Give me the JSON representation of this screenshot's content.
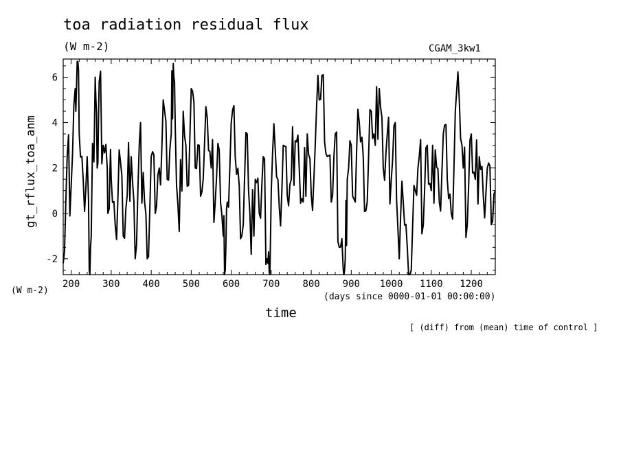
{
  "chart_data": {
    "type": "line",
    "title": "toa radiation residual flux",
    "units": "(W m-2)",
    "run_label": "CGAM_3kw1",
    "ylabel": "gt_rflux_toa_anm",
    "y_units": "(W m-2)",
    "xlabel": "time",
    "x_units": "(days since 0000-01-01 00:00:00)",
    "note": "[ (diff) from (mean) time of control ]",
    "xlim": [
      180,
      1260
    ],
    "ylim": [
      -2.7,
      6.8
    ],
    "x_ticks": [
      200,
      300,
      400,
      500,
      600,
      700,
      800,
      900,
      1000,
      1100,
      1200
    ],
    "y_ticks": [
      -2,
      0,
      2,
      4,
      6
    ],
    "x_tick_labels": [
      "200",
      "300",
      "400",
      "500",
      "600",
      "700",
      "800",
      "900",
      "1000",
      "1100",
      "1200"
    ],
    "y_tick_labels": [
      "-2",
      "0",
      "2",
      "4",
      "6"
    ],
    "series": [
      {
        "name": "gt_rflux_toa_anm",
        "x": [
          180,
          190,
          200,
          210,
          215,
          220,
          230,
          240,
          245,
          250,
          260,
          265,
          270,
          280,
          290,
          295,
          300,
          310,
          320,
          330,
          340,
          350,
          360,
          370,
          380,
          390,
          400,
          410,
          420,
          430,
          440,
          450,
          455,
          460,
          470,
          480,
          490,
          500,
          510,
          520,
          530,
          540,
          550,
          560,
          570,
          580,
          585,
          590,
          600,
          610,
          620,
          630,
          640,
          650,
          660,
          670,
          680,
          690,
          695,
          700,
          710,
          720,
          730,
          740,
          750,
          760,
          770,
          780,
          790,
          800,
          810,
          820,
          830,
          840,
          850,
          860,
          870,
          880,
          885,
          890,
          900,
          910,
          920,
          930,
          940,
          950,
          960,
          970,
          980,
          990,
          1000,
          1010,
          1020,
          1030,
          1040,
          1050,
          1060,
          1070,
          1080,
          1090,
          1100,
          1110,
          1120,
          1130,
          1140,
          1150,
          1160,
          1170,
          1180,
          1190,
          1200,
          1210,
          1220,
          1230,
          1240,
          1250,
          1260
        ],
        "values": [
          -2.2,
          2.5,
          1.2,
          5.5,
          6.7,
          3.5,
          1.5,
          2.5,
          -2.5,
          -1.0,
          6.0,
          2.0,
          5.8,
          3.0,
          2.0,
          0.2,
          1.5,
          -0.5,
          2.8,
          -1.0,
          0.8,
          2.5,
          -2.0,
          3.0,
          1.8,
          -2.0,
          2.5,
          0.0,
          2.0,
          5.0,
          1.5,
          3.5,
          6.6,
          3.8,
          -0.8,
          4.5,
          1.2,
          5.5,
          2.0,
          3.0,
          1.5,
          4.2,
          2.0,
          0.5,
          2.8,
          -1.0,
          -2.5,
          0.5,
          4.0,
          2.5,
          1.2,
          -0.5,
          3.5,
          -1.8,
          1.5,
          0.0,
          2.5,
          -2.0,
          -2.6,
          1.0,
          2.8,
          0.3,
          3.0,
          0.8,
          1.5,
          3.2,
          2.0,
          0.5,
          3.5,
          0.8,
          3.0,
          5.0,
          6.1,
          2.5,
          0.5,
          3.5,
          -1.5,
          -2.5,
          -2.0,
          1.5,
          3.0,
          0.5,
          4.0,
          2.5,
          0.5,
          4.5,
          3.0,
          5.5,
          2.0,
          3.5,
          1.5,
          4.0,
          -2.0,
          0.5,
          -1.5,
          -2.5,
          1.0,
          2.5,
          -0.5,
          3.0,
          1.0,
          2.8,
          0.5,
          3.5,
          1.5,
          0.0,
          4.5,
          5.0,
          2.0,
          -0.5,
          3.5,
          1.5,
          2.5,
          0.8,
          2.0,
          -0.5,
          1.0
        ]
      }
    ]
  }
}
